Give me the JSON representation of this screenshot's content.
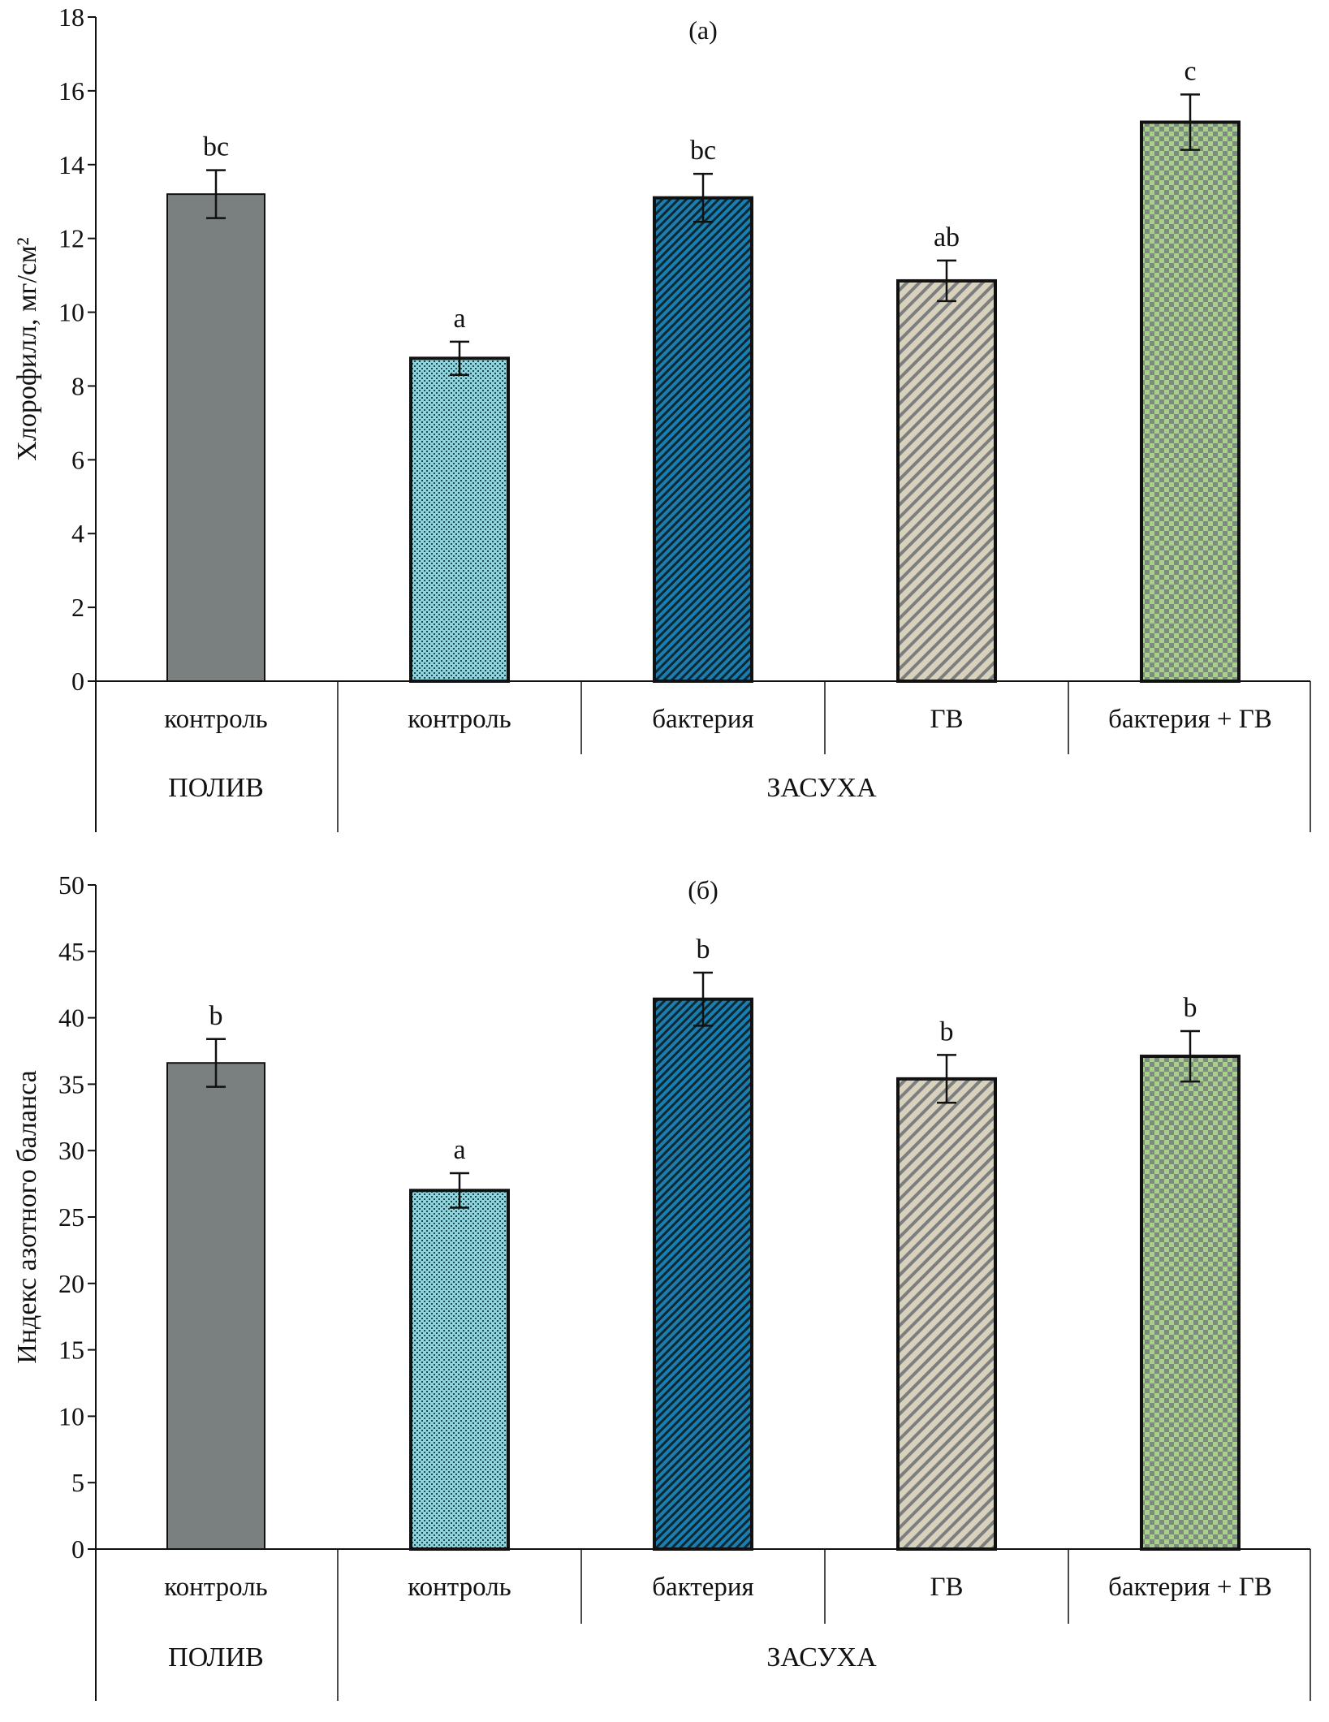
{
  "colors": {
    "polyv_control": "#7a7f80",
    "drought_control": "#8fd3dc",
    "bacteria": "#1a7fb0",
    "gv": "#d8d2bc",
    "bacteria_gv": "#a8d08a",
    "hatch": "#222222"
  },
  "chart_data": [
    {
      "type": "bar",
      "title": "(а)",
      "ylabel": "Хлорофилл, мг/см²",
      "ylim": [
        0,
        18
      ],
      "yticks": [
        0,
        2,
        4,
        6,
        8,
        10,
        12,
        14,
        16,
        18
      ],
      "categories": [
        "контроль",
        "контроль",
        "бактерия",
        "ГВ",
        "бактерия + ГВ"
      ],
      "groups": [
        {
          "label": "ПОЛИВ",
          "span": 1
        },
        {
          "label": "ЗАСУХА",
          "span": 4
        }
      ],
      "values": [
        13.2,
        8.75,
        13.1,
        10.85,
        15.15
      ],
      "errors": [
        0.65,
        0.45,
        0.65,
        0.55,
        0.75
      ],
      "significance": [
        "bc",
        "a",
        "bc",
        "ab",
        "c"
      ],
      "grid": false
    },
    {
      "type": "bar",
      "title": "(б)",
      "ylabel": "Индекс азотного баланса",
      "ylim": [
        0,
        50
      ],
      "yticks": [
        0,
        5,
        10,
        15,
        20,
        25,
        30,
        35,
        40,
        45,
        50
      ],
      "categories": [
        "контроль",
        "контроль",
        "бактерия",
        "ГВ",
        "бактерия + ГВ"
      ],
      "groups": [
        {
          "label": "ПОЛИВ",
          "span": 1
        },
        {
          "label": "ЗАСУХА",
          "span": 4
        }
      ],
      "values": [
        36.6,
        27.0,
        41.4,
        35.4,
        37.1
      ],
      "errors": [
        1.8,
        1.3,
        2.0,
        1.8,
        1.9
      ],
      "significance": [
        "b",
        "a",
        "b",
        "b",
        "b"
      ],
      "grid": false
    }
  ]
}
